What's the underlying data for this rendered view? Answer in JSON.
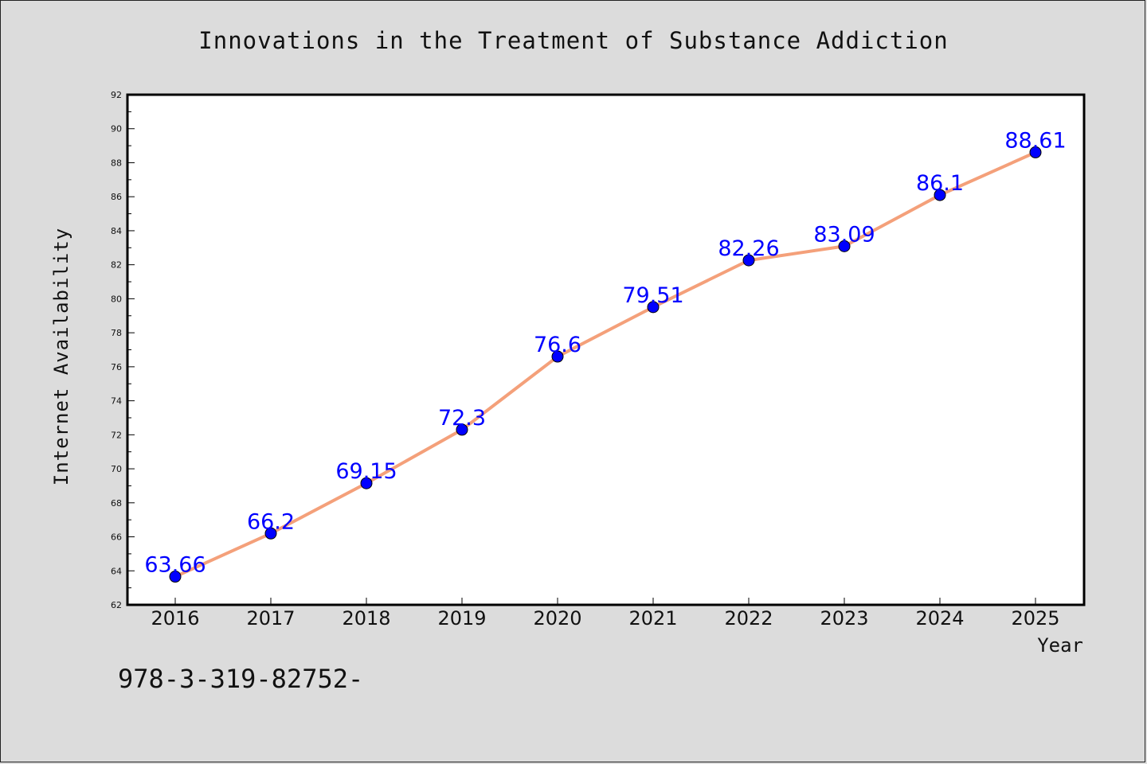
{
  "title": "Innovations in the Treatment of Substance Addiction",
  "footer_text": "978-3-319-82752-",
  "colors": {
    "background": "#dcdcdc",
    "plot_background": "#ffffff",
    "line": "#f4a07a",
    "marker": "#0000ff",
    "data_label": "#0000ff"
  },
  "chart_data": {
    "type": "line",
    "categories": [
      "2016",
      "2017",
      "2018",
      "2019",
      "2020",
      "2021",
      "2022",
      "2023",
      "2024",
      "2025"
    ],
    "values": [
      63.66,
      66.2,
      69.15,
      72.3,
      76.6,
      79.51,
      82.26,
      83.09,
      86.1,
      88.61
    ],
    "data_labels": [
      "63.66",
      "66.2",
      "69.15",
      "72.3",
      "76.6",
      "79.51",
      "82.26",
      "83.09",
      "86.1",
      "88.61"
    ],
    "xlabel": "Year",
    "ylabel": "Internet Availability",
    "ylim": [
      62,
      92
    ],
    "y_ticks": [
      62,
      64,
      66,
      68,
      70,
      72,
      74,
      76,
      78,
      80,
      82,
      84,
      86,
      88,
      90,
      92
    ],
    "grid": false,
    "legend": "none"
  }
}
